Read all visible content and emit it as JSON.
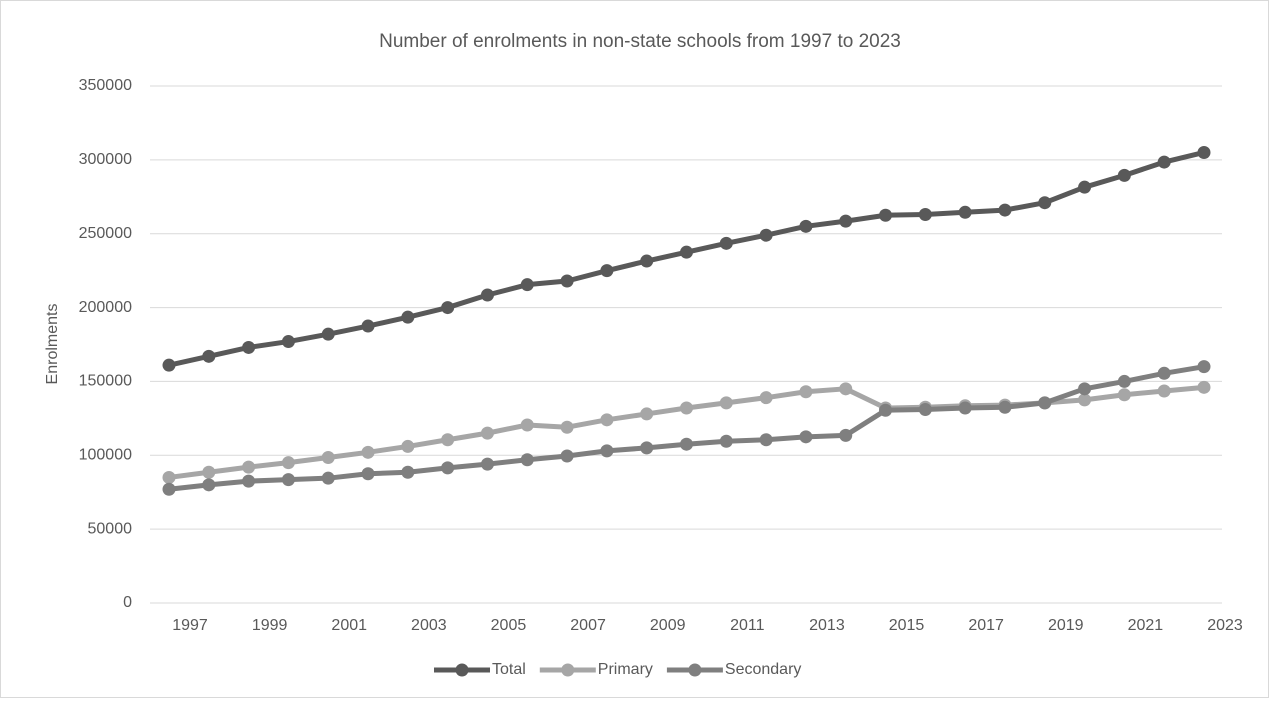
{
  "chart_data": {
    "type": "line",
    "title": "Number of enrolments in non-state schools from 1997 to 2023",
    "y_label": "Enrolments",
    "categories": [
      "1997",
      null,
      "1999",
      null,
      "2001",
      null,
      "2003",
      null,
      "2005",
      null,
      "2007",
      null,
      "2009",
      null,
      "2011",
      null,
      "2013",
      null,
      "2015",
      null,
      "2017",
      null,
      "2019",
      null,
      "2021",
      null,
      "2023"
    ],
    "series": [
      {
        "name": "Total",
        "color": "#595959",
        "values": [
          161000,
          167000,
          173000,
          177000,
          182000,
          187500,
          193500,
          200000,
          208500,
          215500,
          218000,
          225000,
          231500,
          237500,
          243500,
          249000,
          255000,
          258500,
          262500,
          263000,
          264500,
          266000,
          271000,
          281500,
          289500,
          298500,
          305000
        ]
      },
      {
        "name": "Primary",
        "color": "#a6a6a6",
        "values": [
          85000,
          88500,
          92000,
          95000,
          98500,
          102000,
          106000,
          110500,
          115000,
          120500,
          119000,
          124000,
          128000,
          132000,
          135500,
          139000,
          143000,
          145000,
          132000,
          132500,
          133500,
          134000,
          135500,
          137500,
          141000,
          143500,
          146000
        ]
      },
      {
        "name": "Secondary",
        "color": "#7f7f7f",
        "values": [
          77000,
          80000,
          82500,
          83500,
          84500,
          87500,
          88500,
          91500,
          94000,
          97000,
          99500,
          103000,
          105000,
          107500,
          109500,
          110500,
          112500,
          113500,
          130500,
          131000,
          132000,
          132500,
          135500,
          145000,
          150000,
          155500,
          160000
        ]
      }
    ],
    "ylim": [
      0,
      350000
    ],
    "yticks": [
      0,
      50000,
      100000,
      150000,
      200000,
      250000,
      300000,
      350000
    ],
    "grid": true,
    "legend": "bottom"
  }
}
